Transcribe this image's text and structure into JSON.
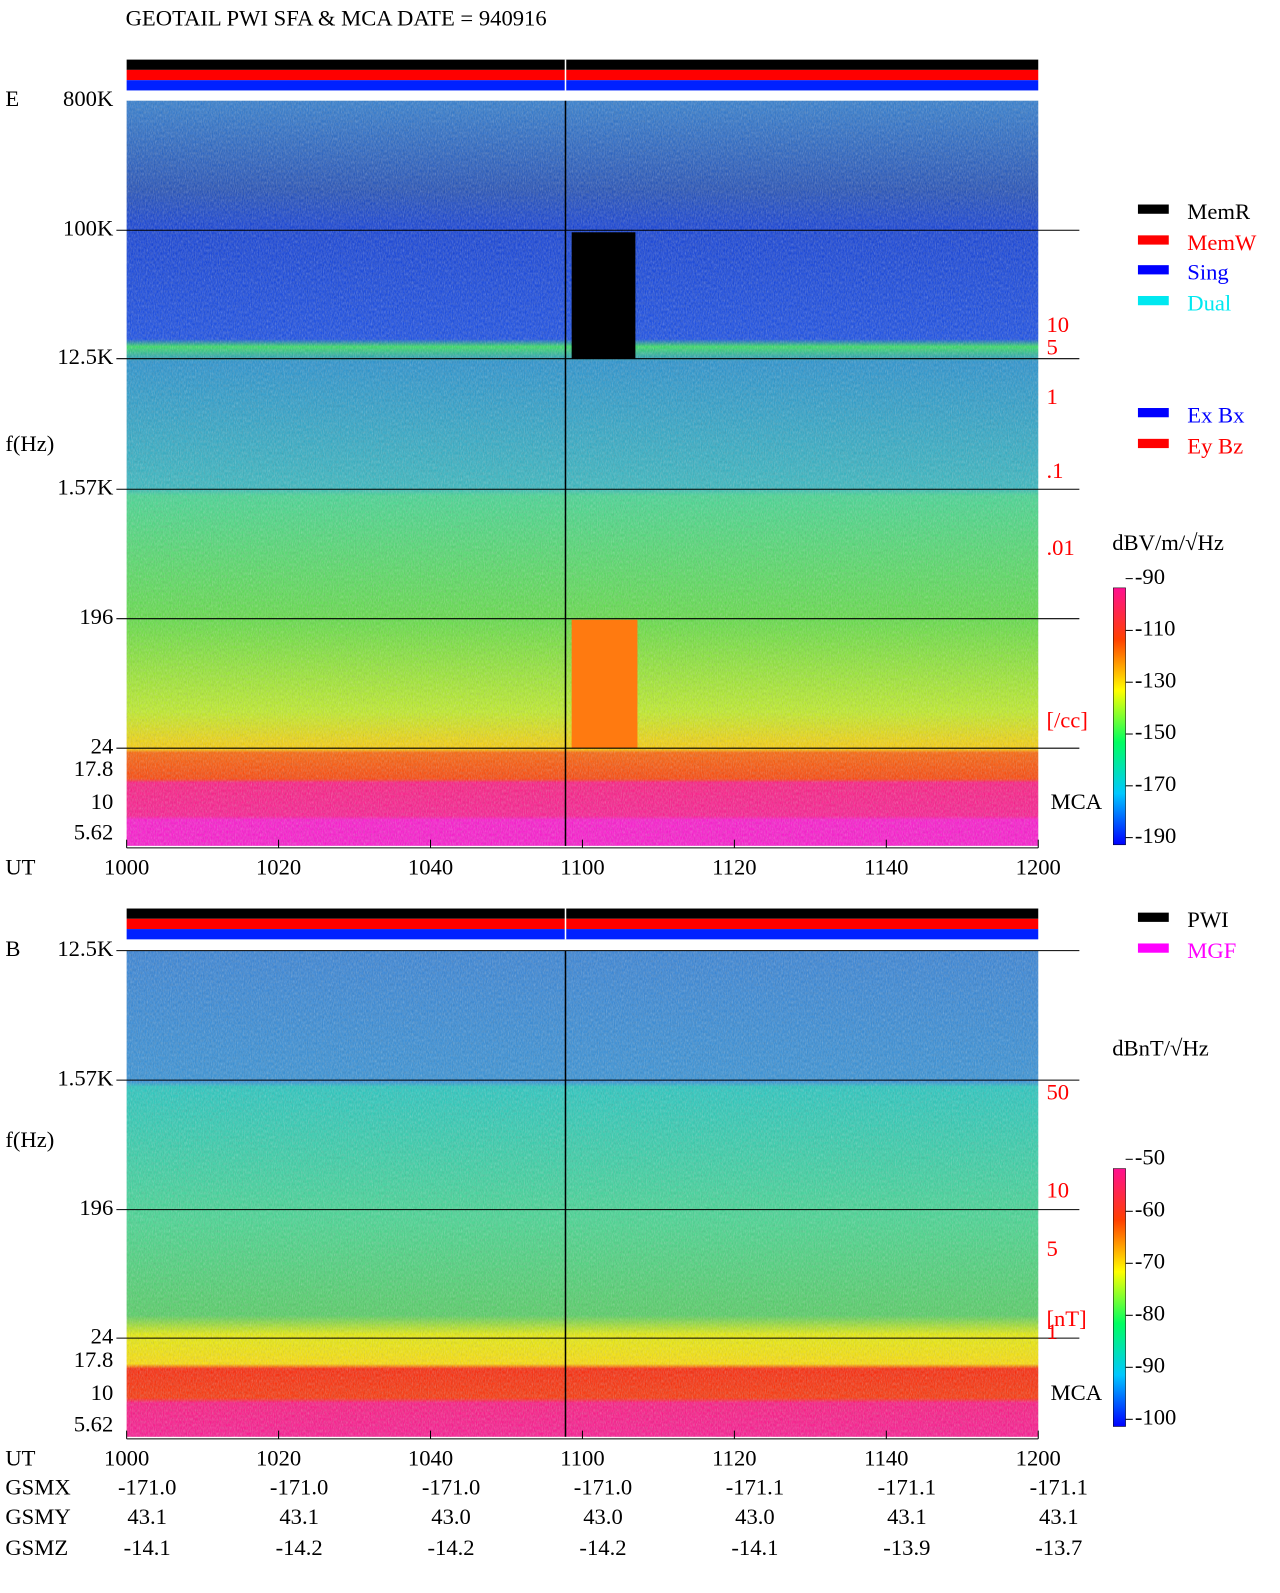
{
  "title": "GEOTAIL  PWI SFA & MCA   DATE = 940916",
  "panels": [
    {
      "label": "E",
      "ylabel": "f(Hz)",
      "yticks": [
        "800K",
        "100K",
        "12.5K",
        "1.57K",
        "196",
        "24",
        "17.8",
        "10",
        "5.62"
      ],
      "band_label": "MCA",
      "xlabel": "UT",
      "xticks": [
        "1000",
        "1020",
        "1040",
        "1100",
        "1120",
        "1140",
        "1200"
      ],
      "right_scale": [
        "10",
        "5",
        "1",
        ".1",
        ".01",
        "[/cc]"
      ],
      "colorbar_title": "dBV/m/√Hz",
      "colorbar_ticks": [
        "-90",
        "-110",
        "-130",
        "-150",
        "-170",
        "-190"
      ]
    },
    {
      "label": "B",
      "ylabel": "f(Hz)",
      "yticks": [
        "12.5K",
        "1.57K",
        "196",
        "24",
        "17.8",
        "10",
        "5.62"
      ],
      "band_label": "MCA",
      "xlabel": "UT",
      "xticks": [
        "1000",
        "1020",
        "1040",
        "1100",
        "1120",
        "1140",
        "1200"
      ],
      "right_scale": [
        "50",
        "10",
        "5",
        "1",
        "[nT]"
      ],
      "colorbar_title": "dBnT/√Hz",
      "colorbar_ticks": [
        "-50",
        "-60",
        "-70",
        "-80",
        "-90",
        "-100"
      ]
    }
  ],
  "legends": [
    [
      {
        "label": "MemR",
        "color": "#000000"
      },
      {
        "label": "MemW",
        "color": "#ff0000"
      },
      {
        "label": "Sing",
        "color": "#0000ff"
      },
      {
        "label": "Dual",
        "color": "#00e8f0"
      }
    ],
    [
      {
        "label": "Ex Bx",
        "color": "#0000ff"
      },
      {
        "label": "Ey Bz",
        "color": "#ff0000"
      }
    ],
    [
      {
        "label": "PWI",
        "color": "#000000"
      },
      {
        "label": "MGF",
        "color": "#ff00ff"
      }
    ]
  ],
  "orbit": [
    {
      "label": "GSMX",
      "values": [
        "-171.0",
        "-171.0",
        "-171.0",
        "-171.0",
        "-171.1",
        "-171.1",
        "-171.1"
      ]
    },
    {
      "label": "GSMY",
      "values": [
        "43.1",
        "43.1",
        "43.0",
        "43.0",
        "43.0",
        "43.1",
        "43.1"
      ]
    },
    {
      "label": "GSMZ",
      "values": [
        "-14.1",
        "-14.2",
        "-14.2",
        "-14.2",
        "-14.1",
        "-13.9",
        "-13.7"
      ]
    }
  ]
}
